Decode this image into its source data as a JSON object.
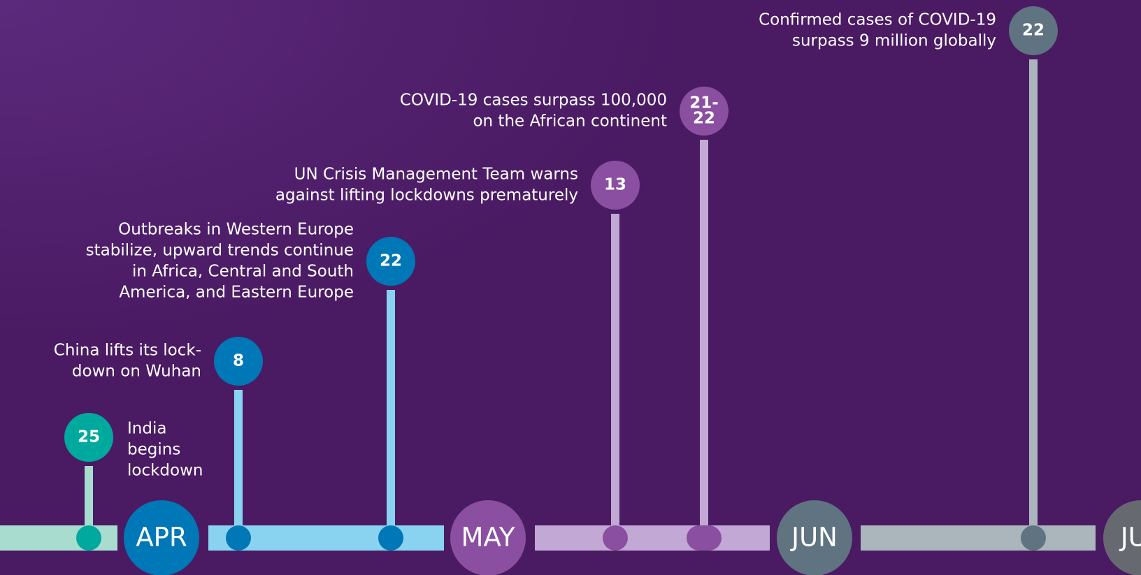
{
  "months": [
    "APR",
    "MAY",
    "JUN",
    "JUL"
  ],
  "events": [
    {
      "day": [
        "25"
      ],
      "lines": [
        "India",
        "begins",
        "lockdown"
      ]
    },
    {
      "day": [
        "8"
      ],
      "lines": [
        "China lifts its lock-",
        "down on Wuhan"
      ]
    },
    {
      "day": [
        "22"
      ],
      "lines": [
        "Outbreaks in Western Europe",
        "stabilize, upward trends continue",
        "in Africa, Central and South",
        "America, and Eastern Europe"
      ]
    },
    {
      "day": [
        "13"
      ],
      "lines": [
        "UN Crisis Management Team warns",
        "against lifting lockdowns prematurely"
      ]
    },
    {
      "day": [
        "21-",
        "22"
      ],
      "lines": [
        "COVID-19 cases surpass 100,000",
        "on the African continent"
      ]
    },
    {
      "day": [
        "22"
      ],
      "lines": [
        "Confirmed cases of COVID-19",
        "surpass 9 million globally"
      ]
    }
  ]
}
